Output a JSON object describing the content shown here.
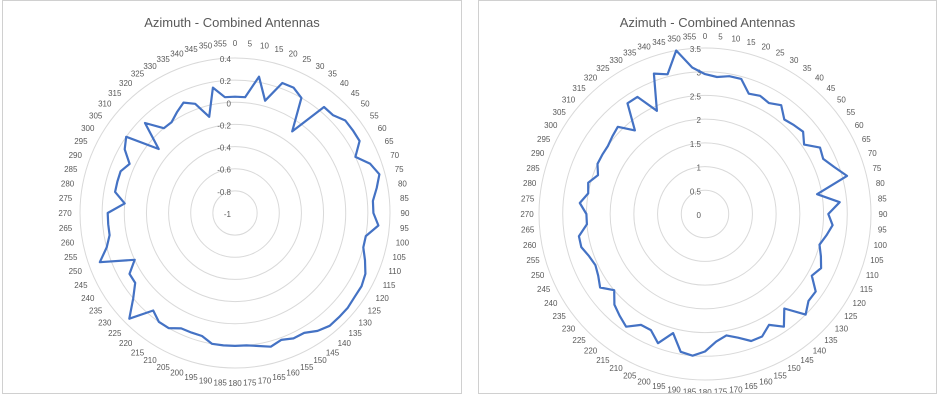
{
  "chart_data": [
    {
      "type": "radar",
      "title": "Azimuth - Combined Antennas",
      "rmin": -1,
      "rmax": 0.4,
      "radial_ticks": [
        "-1",
        "-0.8",
        "-0.6",
        "-0.4",
        "-0.2",
        "0",
        "0.2",
        "0.4"
      ],
      "radial_values": [
        -1,
        -0.8,
        -0.6,
        -0.4,
        -0.2,
        0,
        0.2,
        0.4
      ],
      "angle_labels": [
        "0",
        "5",
        "10",
        "15",
        "20",
        "25",
        "30",
        "35",
        "40",
        "45",
        "50",
        "55",
        "60",
        "65",
        "70",
        "75",
        "80",
        "85",
        "90",
        "95",
        "100",
        "105",
        "110",
        "115",
        "120",
        "125",
        "130",
        "135",
        "140",
        "145",
        "150",
        "155",
        "160",
        "165",
        "170",
        "175",
        "180",
        "185",
        "190",
        "195",
        "200",
        "205",
        "210",
        "215",
        "220",
        "225",
        "230",
        "235",
        "240",
        "245",
        "250",
        "255",
        "260",
        "265",
        "270",
        "275",
        "280",
        "285",
        "290",
        "295",
        "300",
        "305",
        "310",
        "315",
        "320",
        "325",
        "330",
        "335",
        "340",
        "345",
        "350",
        "355"
      ],
      "series": [
        {
          "color": "#4472c4",
          "values": [
            0.05,
            0.05,
            0.25,
            0.05,
            0.25,
            0.25,
            0.2,
            -0.1,
            0.25,
            0.25,
            0.3,
            0.3,
            0.3,
            0.2,
            0.3,
            0.35,
            0.3,
            0.25,
            0.25,
            0.3,
            0.2,
            0.2,
            0.25,
            0.3,
            0.32,
            0.32,
            0.33,
            0.33,
            0.33,
            0.3,
            0.25,
            0.25,
            0.22,
            0.25,
            0.22,
            0.2,
            0.2,
            0.2,
            0.2,
            0.15,
            0.15,
            0.15,
            0.2,
            0.2,
            0.15,
            0.35,
            0.2,
            0.1,
            0.1,
            0.0,
            0.3,
            0.2,
            0.15,
            0.15,
            0.15,
            0.0,
            0.1,
            0.1,
            0.1,
            0.05,
            0.15,
            0.2,
            -0.1,
            0.15,
            0.0,
            0.0,
            0.05,
            0.1,
            0.05,
            -0.1,
            0.15,
            0.05
          ]
        }
      ]
    },
    {
      "type": "radar",
      "title": "Azimuth - Combined Antennas",
      "rmin": 0,
      "rmax": 3.5,
      "radial_ticks": [
        "0",
        "0.5",
        "1",
        "1.5",
        "2",
        "2.5",
        "3",
        "3.5"
      ],
      "radial_values": [
        0,
        0.5,
        1,
        1.5,
        2,
        2.5,
        3,
        3.5
      ],
      "angle_labels": [
        "0",
        "5",
        "10",
        "15",
        "20",
        "25",
        "30",
        "35",
        "40",
        "45",
        "50",
        "55",
        "60",
        "65",
        "70",
        "75",
        "80",
        "85",
        "90",
        "95",
        "100",
        "105",
        "110",
        "115",
        "120",
        "125",
        "130",
        "135",
        "140",
        "145",
        "150",
        "155",
        "160",
        "165",
        "170",
        "175",
        "180",
        "185",
        "190",
        "195",
        "200",
        "205",
        "210",
        "215",
        "220",
        "225",
        "230",
        "235",
        "240",
        "245",
        "250",
        "255",
        "260",
        "265",
        "270",
        "275",
        "280",
        "285",
        "290",
        "295",
        "300",
        "305",
        "310",
        "315",
        "320",
        "325",
        "330",
        "335",
        "340",
        "345",
        "350",
        "355"
      ],
      "series": [
        {
          "color": "#4472c4",
          "values": [
            2.95,
            2.9,
            2.95,
            2.95,
            2.7,
            2.75,
            2.7,
            2.8,
            2.6,
            2.65,
            2.7,
            2.55,
            2.8,
            2.75,
            2.9,
            3.1,
            2.4,
            2.85,
            2.6,
            2.7,
            2.6,
            2.5,
            2.6,
            2.7,
            2.6,
            2.85,
            2.85,
            3.0,
            2.6,
            2.9,
            2.7,
            2.85,
            2.85,
            2.7,
            2.6,
            2.7,
            2.9,
            3.0,
            2.95,
            2.6,
            2.9,
            2.7,
            2.7,
            2.9,
            2.8,
            2.7,
            2.5,
            2.7,
            2.6,
            2.55,
            2.6,
            2.7,
            2.7,
            2.5,
            2.5,
            2.65,
            2.5,
            2.55,
            2.4,
            2.5,
            2.5,
            2.5,
            2.55,
            2.6,
            2.3,
            2.85,
            2.85,
            2.4,
            3.15,
            3.05,
            3.5,
            3.1
          ]
        }
      ]
    }
  ]
}
